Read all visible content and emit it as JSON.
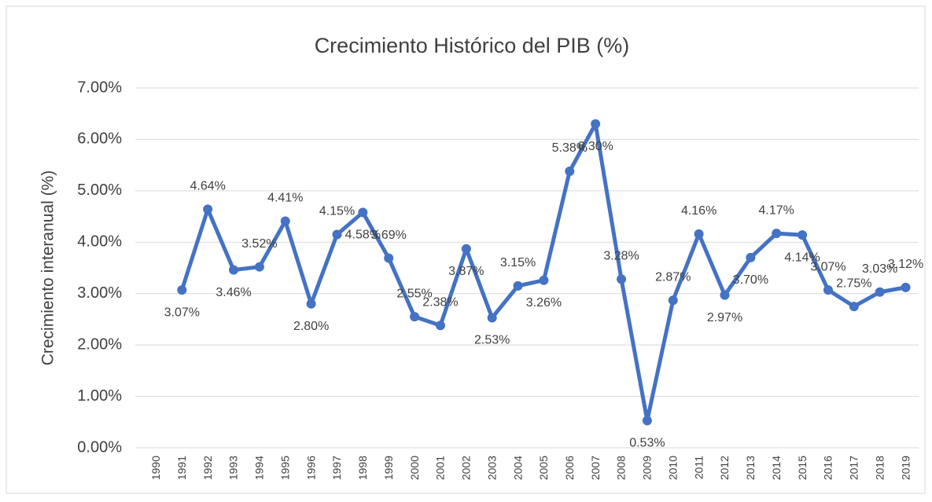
{
  "chart_data": {
    "type": "line",
    "title": "Crecimiento Histórico del PIB (%)",
    "y_label": "Crecimiento interanual (%)",
    "categories": [
      "1990",
      "1991",
      "1992",
      "1993",
      "1994",
      "1995",
      "1996",
      "1997",
      "1998",
      "1999",
      "2000",
      "2001",
      "2002",
      "2003",
      "2004",
      "2005",
      "2006",
      "2007",
      "2008",
      "2009",
      "2010",
      "2011",
      "2012",
      "2013",
      "2014",
      "2015",
      "2016",
      "2017",
      "2018",
      "2019"
    ],
    "series": [
      {
        "name": "Crecimiento interanual",
        "color": "#4472c4",
        "values": [
          null,
          3.07,
          4.64,
          3.46,
          3.52,
          4.41,
          2.8,
          4.15,
          4.58,
          3.69,
          2.55,
          2.38,
          3.87,
          2.53,
          3.15,
          3.26,
          5.38,
          6.3,
          3.28,
          0.53,
          2.87,
          4.16,
          2.97,
          3.7,
          4.17,
          4.14,
          3.07,
          2.75,
          3.03,
          3.12
        ],
        "value_labels": [
          null,
          "3.07%",
          "4.64%",
          "3.46%",
          "3.52%",
          "4.41%",
          "2.80%",
          "4.15%",
          "4.58%",
          "3.69%",
          "2.55%",
          "2.38%",
          "3.87%",
          "2.53%",
          "3.15%",
          "3.26%",
          "5.38%",
          "6.30%",
          "3.28%",
          "0.53%",
          "2.87%",
          "4.16%",
          "2.97%",
          "3.70%",
          "4.17%",
          "4.14%",
          "3.07%",
          "2.75%",
          "3.03%",
          "3.12%"
        ]
      }
    ],
    "ylim": [
      0,
      7
    ],
    "yticks": [
      {
        "value": 0,
        "label": "0.00%"
      },
      {
        "value": 1,
        "label": "1.00%"
      },
      {
        "value": 2,
        "label": "2.00%"
      },
      {
        "value": 3,
        "label": "3.00%"
      },
      {
        "value": 4,
        "label": "4.00%"
      },
      {
        "value": 5,
        "label": "5.00%"
      },
      {
        "value": 6,
        "label": "6.00%"
      },
      {
        "value": 7,
        "label": "7.00%"
      }
    ],
    "grid": true
  }
}
